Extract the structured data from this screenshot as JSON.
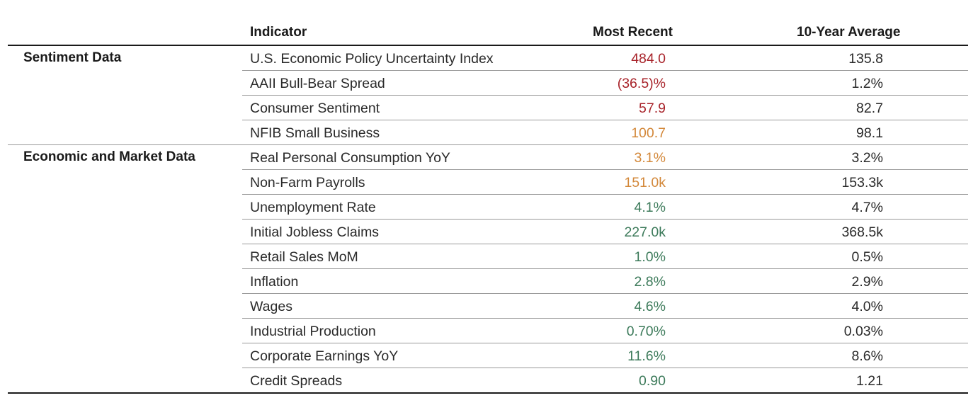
{
  "header": {
    "indicator": "Indicator",
    "most_recent": "Most Recent",
    "ten_year_average": "10-Year Average"
  },
  "colors": {
    "red": "#a8232a",
    "orange": "#d3883a",
    "green": "#3c7a5a",
    "text": "#2a2a2a",
    "rule": "#1a1a1a"
  },
  "sections": [
    {
      "label": "Sentiment Data",
      "rows": [
        {
          "indicator": "U.S. Economic Policy Uncertainty Index",
          "most_recent": "484.0",
          "avg": "135.8",
          "status": "red"
        },
        {
          "indicator": "AAII Bull-Bear Spread",
          "most_recent": "(36.5)%",
          "avg": "1.2%",
          "status": "red"
        },
        {
          "indicator": "Consumer Sentiment",
          "most_recent": "57.9",
          "avg": "82.7",
          "status": "red"
        },
        {
          "indicator": "NFIB Small Business",
          "most_recent": "100.7",
          "avg": "98.1",
          "status": "orange"
        }
      ]
    },
    {
      "label": "Economic and Market Data",
      "rows": [
        {
          "indicator": "Real Personal Consumption YoY",
          "most_recent": "3.1%",
          "avg": "3.2%",
          "status": "orange"
        },
        {
          "indicator": "Non-Farm Payrolls",
          "most_recent": "151.0k",
          "avg": "153.3k",
          "status": "orange"
        },
        {
          "indicator": "Unemployment Rate",
          "most_recent": "4.1%",
          "avg": "4.7%",
          "status": "green"
        },
        {
          "indicator": "Initial Jobless Claims",
          "most_recent": "227.0k",
          "avg": "368.5k",
          "status": "green"
        },
        {
          "indicator": "Retail Sales MoM",
          "most_recent": "1.0%",
          "avg": "0.5%",
          "status": "green"
        },
        {
          "indicator": "Inflation",
          "most_recent": "2.8%",
          "avg": "2.9%",
          "status": "green"
        },
        {
          "indicator": "Wages",
          "most_recent": "4.6%",
          "avg": "4.0%",
          "status": "green"
        },
        {
          "indicator": "Industrial Production",
          "most_recent": "0.70%",
          "avg": "0.03%",
          "status": "green"
        },
        {
          "indicator": "Corporate Earnings YoY",
          "most_recent": "11.6%",
          "avg": "8.6%",
          "status": "green"
        },
        {
          "indicator": "Credit Spreads",
          "most_recent": "0.90",
          "avg": "1.21",
          "status": "green"
        }
      ]
    }
  ]
}
